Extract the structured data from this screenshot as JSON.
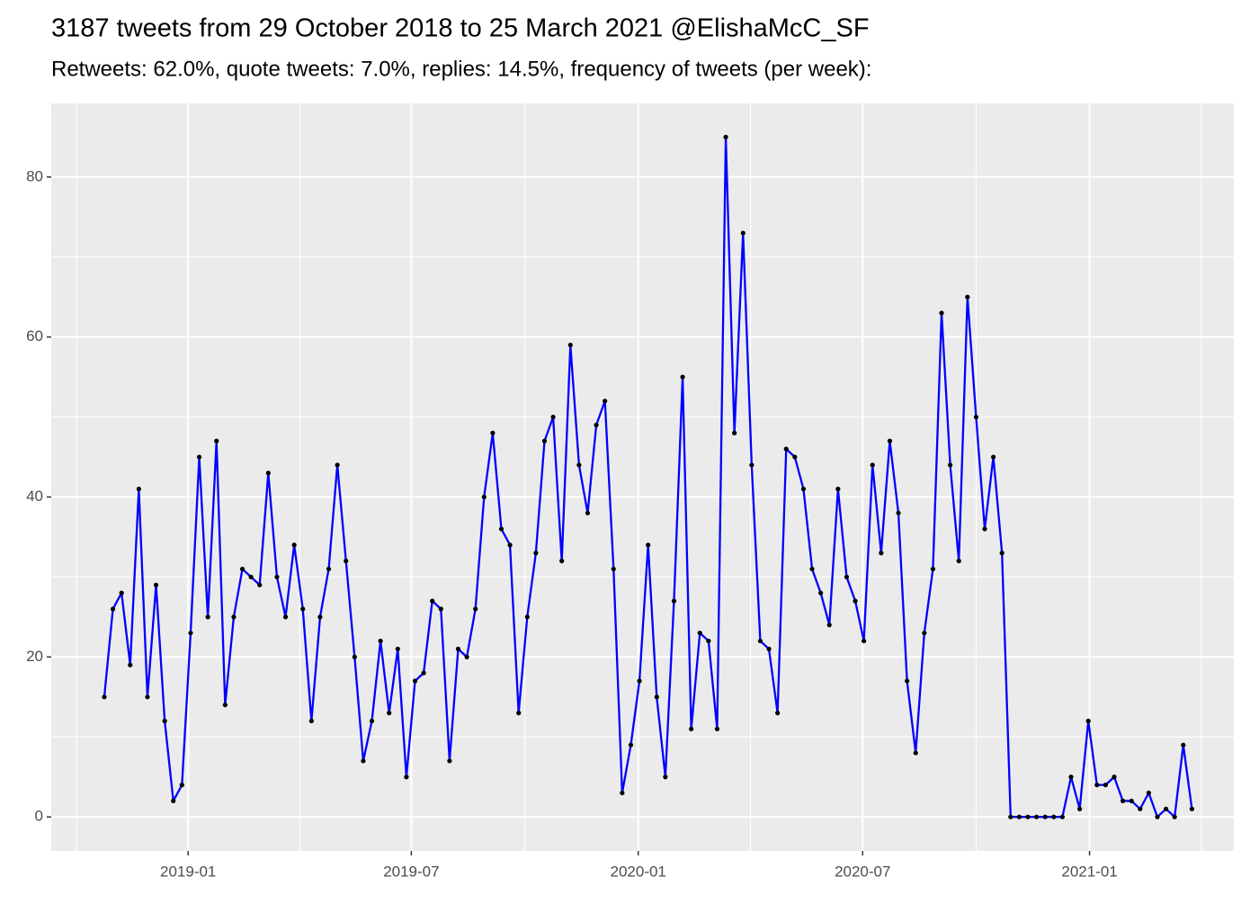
{
  "chart_data": {
    "type": "line",
    "title": "3187 tweets from 29 October 2018 to 25 March 2021 @ElishaMcC_SF",
    "subtitle": "Retweets: 62.0%, quote tweets: 7.0%, replies: 14.5%, frequency of tweets (per week):",
    "x": [
      "2018-10-25",
      "2018-11-01",
      "2018-11-08",
      "2018-11-15",
      "2018-11-22",
      "2018-11-29",
      "2018-12-06",
      "2018-12-13",
      "2018-12-20",
      "2018-12-27",
      "2019-01-03",
      "2019-01-10",
      "2019-01-17",
      "2019-01-24",
      "2019-01-31",
      "2019-02-07",
      "2019-02-14",
      "2019-02-21",
      "2019-02-28",
      "2019-03-07",
      "2019-03-14",
      "2019-03-21",
      "2019-03-28",
      "2019-04-04",
      "2019-04-11",
      "2019-04-18",
      "2019-04-25",
      "2019-05-02",
      "2019-05-09",
      "2019-05-16",
      "2019-05-23",
      "2019-05-30",
      "2019-06-06",
      "2019-06-13",
      "2019-06-20",
      "2019-06-27",
      "2019-07-04",
      "2019-07-11",
      "2019-07-18",
      "2019-07-25",
      "2019-08-01",
      "2019-08-08",
      "2019-08-15",
      "2019-08-22",
      "2019-08-29",
      "2019-09-05",
      "2019-09-12",
      "2019-09-19",
      "2019-09-26",
      "2019-10-03",
      "2019-10-10",
      "2019-10-17",
      "2019-10-24",
      "2019-10-31",
      "2019-11-07",
      "2019-11-14",
      "2019-11-21",
      "2019-11-28",
      "2019-12-05",
      "2019-12-12",
      "2019-12-19",
      "2019-12-26",
      "2020-01-02",
      "2020-01-09",
      "2020-01-16",
      "2020-01-23",
      "2020-01-30",
      "2020-02-06",
      "2020-02-13",
      "2020-02-20",
      "2020-02-27",
      "2020-03-05",
      "2020-03-12",
      "2020-03-19",
      "2020-03-26",
      "2020-04-02",
      "2020-04-09",
      "2020-04-16",
      "2020-04-23",
      "2020-04-30",
      "2020-05-07",
      "2020-05-14",
      "2020-05-21",
      "2020-05-28",
      "2020-06-04",
      "2020-06-11",
      "2020-06-18",
      "2020-06-25",
      "2020-07-02",
      "2020-07-09",
      "2020-07-16",
      "2020-07-23",
      "2020-07-30",
      "2020-08-06",
      "2020-08-13",
      "2020-08-20",
      "2020-08-27",
      "2020-09-03",
      "2020-09-10",
      "2020-09-17",
      "2020-09-24",
      "2020-10-01",
      "2020-10-08",
      "2020-10-15",
      "2020-10-22",
      "2020-10-29",
      "2020-11-05",
      "2020-11-12",
      "2020-11-19",
      "2020-11-26",
      "2020-12-03",
      "2020-12-10",
      "2020-12-17",
      "2020-12-24",
      "2020-12-31",
      "2021-01-07",
      "2021-01-14",
      "2021-01-21",
      "2021-01-28",
      "2021-02-04",
      "2021-02-11",
      "2021-02-18",
      "2021-02-25",
      "2021-03-04",
      "2021-03-11",
      "2021-03-18",
      "2021-03-25"
    ],
    "values": [
      15,
      26,
      28,
      19,
      41,
      15,
      29,
      12,
      2,
      4,
      23,
      45,
      25,
      47,
      14,
      25,
      31,
      30,
      29,
      43,
      30,
      25,
      34,
      26,
      12,
      25,
      31,
      44,
      32,
      20,
      7,
      12,
      22,
      13,
      21,
      5,
      17,
      18,
      27,
      26,
      7,
      21,
      20,
      26,
      40,
      48,
      36,
      34,
      13,
      25,
      33,
      47,
      50,
      32,
      59,
      44,
      38,
      49,
      52,
      31,
      3,
      9,
      17,
      34,
      15,
      5,
      27,
      55,
      11,
      23,
      22,
      11,
      85,
      48,
      73,
      44,
      22,
      21,
      13,
      46,
      45,
      41,
      31,
      28,
      24,
      41,
      30,
      27,
      22,
      44,
      33,
      47,
      38,
      17,
      8,
      23,
      31,
      63,
      44,
      32,
      65,
      50,
      36,
      45,
      33,
      0,
      0,
      0,
      0,
      0,
      0,
      0,
      5,
      1,
      12,
      4,
      4,
      5,
      2,
      2,
      1,
      3,
      0,
      1,
      0,
      9,
      1
    ],
    "color": "#0000ff",
    "point_color": "#000000",
    "xlim": [
      "2018-09-12",
      "2021-04-28"
    ],
    "xticks": [
      {
        "value": "2019-01-01",
        "label": "2019-01"
      },
      {
        "value": "2019-07-01",
        "label": "2019-07"
      },
      {
        "value": "2020-01-01",
        "label": "2020-01"
      },
      {
        "value": "2020-07-01",
        "label": "2020-07"
      },
      {
        "value": "2021-01-01",
        "label": "2021-01"
      }
    ],
    "ylim": [
      -4.25,
      89.2
    ],
    "yticks": [
      0,
      20,
      40,
      60,
      80
    ],
    "grid": true
  }
}
